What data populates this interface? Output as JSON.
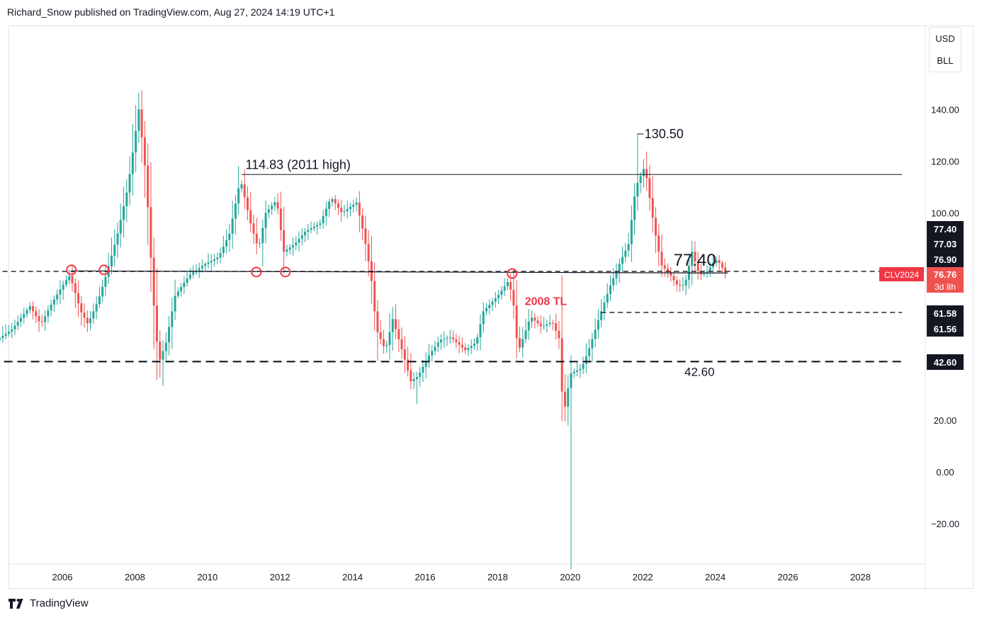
{
  "header": {
    "text": "Richard_Snow published on TradingView.com, Aug 27, 2024 14:19 UTC+1"
  },
  "units": {
    "currency": "USD",
    "unit": "BLL"
  },
  "footer": {
    "brand": "TradingView",
    "logo_icon": "tradingview-logo-icon"
  },
  "chart_data": {
    "type": "candlestick",
    "symbol_label": "CLV2024",
    "price_label": "76.76",
    "countdown_label": "3d 8h",
    "price_axis": {
      "ticks": [
        140,
        120,
        100,
        20,
        0,
        -20
      ],
      "tick_labels": [
        "140.00",
        "120.00",
        "100.00",
        "20.00",
        "0.00",
        "−20.00"
      ],
      "visible_range": [
        -37,
        148
      ]
    },
    "time_axis": {
      "ticks": [
        2006,
        2008,
        2010,
        2012,
        2014,
        2016,
        2018,
        2020,
        2022,
        2024,
        2026,
        2028
      ],
      "tick_labels": [
        "2006",
        "2008",
        "2010",
        "2012",
        "2014",
        "2016",
        "2018",
        "2020",
        "2022",
        "2024",
        "2026",
        "2028"
      ],
      "visible_range": [
        2004.0,
        2029.5
      ]
    },
    "levels": [
      {
        "name": "77.40 horizontal",
        "value": 77.4,
        "style": "dashed",
        "from": 2004.0,
        "to": 2029.5
      },
      {
        "name": "61.58 horizontal",
        "value": 61.58,
        "style": "dashed",
        "from": 2021.2,
        "to": 2029.5
      },
      {
        "name": "42.60 horizontal",
        "value": 42.6,
        "style": "dashed-thick",
        "from": 2004.0,
        "to": 2029.5
      },
      {
        "name": "2011 high line",
        "value": 114.83,
        "style": "solid",
        "from": 2011.3,
        "to": 2029.5
      }
    ],
    "trendline_2008": {
      "from": [
        2006.6,
        77.6
      ],
      "to": [
        2024.7,
        76.8
      ]
    },
    "annotations": [
      {
        "text": "114.83 (2011 high)",
        "x": 2011.4,
        "y": 114.83,
        "color": "#131722"
      },
      {
        "text": "130.50",
        "x": 2022.4,
        "y": 130.5,
        "color": "#131722"
      },
      {
        "text": "77.40",
        "x": 2023.2,
        "y": 77.4,
        "color": "#131722"
      },
      {
        "text": "2008 TL",
        "x": 2019.1,
        "y": 64.5,
        "color": "#f23645"
      },
      {
        "text": "42.60",
        "x": 2023.5,
        "y": 42.6,
        "color": "#131722"
      }
    ],
    "touch_points": [
      {
        "x": 2006.6,
        "y": 78.0
      },
      {
        "x": 2007.5,
        "y": 78.0
      },
      {
        "x": 2011.7,
        "y": 77.2
      },
      {
        "x": 2012.5,
        "y": 77.2
      },
      {
        "x": 2018.75,
        "y": 76.6
      }
    ],
    "price_tags": [
      {
        "label": "77.40",
        "value": 77.4,
        "bg": "#131722",
        "fg": "#ffffff"
      },
      {
        "label": "77.03",
        "value": 77.03,
        "bg": "#131722",
        "fg": "#ffffff"
      },
      {
        "label": "76.90",
        "value": 76.9,
        "bg": "#131722",
        "fg": "#ffffff"
      },
      {
        "label": "61.58",
        "value": 61.58,
        "bg": "#131722",
        "fg": "#ffffff"
      },
      {
        "label": "61.56",
        "value": 61.56,
        "bg": "#131722",
        "fg": "#ffffff"
      },
      {
        "label": "42.60",
        "value": 42.6,
        "bg": "#131722",
        "fg": "#ffffff"
      }
    ],
    "colors": {
      "up": "#26a69a",
      "down": "#ef5350",
      "label_red": "#f23645",
      "axis_border": "#e0e3eb"
    },
    "path": [
      [
        2004.0,
        45
      ],
      [
        2004.5,
        50
      ],
      [
        2005.0,
        55
      ],
      [
        2005.5,
        64
      ],
      [
        2005.8,
        57
      ],
      [
        2006.1,
        65
      ],
      [
        2006.4,
        72
      ],
      [
        2006.6,
        76
      ],
      [
        2006.9,
        62
      ],
      [
        2007.1,
        57
      ],
      [
        2007.4,
        67
      ],
      [
        2007.6,
        76
      ],
      [
        2007.9,
        91
      ],
      [
        2008.2,
        110
      ],
      [
        2008.5,
        140
      ],
      [
        2008.7,
        114
      ],
      [
        2008.9,
        67
      ],
      [
        2009.05,
        42
      ],
      [
        2009.25,
        50
      ],
      [
        2009.5,
        68
      ],
      [
        2009.9,
        76
      ],
      [
        2010.3,
        80
      ],
      [
        2010.7,
        83
      ],
      [
        2011.0,
        92
      ],
      [
        2011.3,
        113
      ],
      [
        2011.6,
        95
      ],
      [
        2011.8,
        86
      ],
      [
        2012.0,
        100
      ],
      [
        2012.3,
        105
      ],
      [
        2012.5,
        85
      ],
      [
        2012.8,
        88
      ],
      [
        2013.1,
        93
      ],
      [
        2013.5,
        96
      ],
      [
        2013.8,
        106
      ],
      [
        2014.1,
        100
      ],
      [
        2014.5,
        104
      ],
      [
        2014.7,
        92
      ],
      [
        2014.9,
        76
      ],
      [
        2015.05,
        55
      ],
      [
        2015.3,
        47
      ],
      [
        2015.5,
        59
      ],
      [
        2015.8,
        45
      ],
      [
        2016.0,
        35
      ],
      [
        2016.2,
        37
      ],
      [
        2016.5,
        45
      ],
      [
        2016.8,
        51
      ],
      [
        2017.1,
        52
      ],
      [
        2017.5,
        47
      ],
      [
        2017.8,
        50
      ],
      [
        2018.0,
        62
      ],
      [
        2018.4,
        68
      ],
      [
        2018.7,
        74
      ],
      [
        2018.85,
        63
      ],
      [
        2018.95,
        46
      ],
      [
        2019.3,
        60
      ],
      [
        2019.6,
        56
      ],
      [
        2019.9,
        58
      ],
      [
        2020.1,
        51
      ],
      [
        2020.2,
        21
      ],
      [
        2020.4,
        38
      ],
      [
        2020.7,
        40
      ],
      [
        2020.9,
        47
      ],
      [
        2021.2,
        60
      ],
      [
        2021.5,
        72
      ],
      [
        2021.8,
        82
      ],
      [
        2022.0,
        88
      ],
      [
        2022.2,
        110
      ],
      [
        2022.45,
        118
      ],
      [
        2022.7,
        95
      ],
      [
        2022.9,
        80
      ],
      [
        2023.1,
        77
      ],
      [
        2023.35,
        72
      ],
      [
        2023.55,
        72
      ],
      [
        2023.75,
        85
      ],
      [
        2023.95,
        76
      ],
      [
        2024.15,
        77
      ],
      [
        2024.4,
        82
      ],
      [
        2024.55,
        80
      ],
      [
        2024.65,
        76.76
      ]
    ],
    "extremes": [
      {
        "x": 2008.5,
        "high": 147.3
      },
      {
        "x": 2009.05,
        "low": 33.2
      },
      {
        "x": 2016.1,
        "low": 26.1
      },
      {
        "x": 2020.3,
        "low": -37.6
      },
      {
        "x": 2022.2,
        "high": 130.5
      },
      {
        "x": 2022.45,
        "high": 123.7
      }
    ]
  }
}
